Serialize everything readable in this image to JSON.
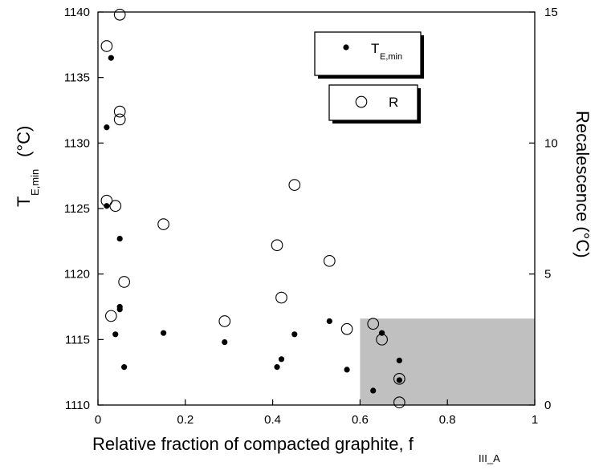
{
  "chart_data": {
    "type": "scatter",
    "x_axis": {
      "label_main": "Relative fraction of compacted graphite, f",
      "label_sub": "III_A",
      "range": [
        0,
        1
      ],
      "ticks": [
        0,
        0.2,
        0.4,
        0.6,
        0.8,
        1
      ],
      "tick_labels": [
        "0",
        "0.2",
        "0.4",
        "0.6",
        "0.8",
        "1"
      ]
    },
    "y_left": {
      "label_main": "T",
      "label_sub": "E,min",
      "label_unit": "(°C)",
      "range": [
        1110,
        1140
      ],
      "ticks": [
        1110,
        1115,
        1120,
        1125,
        1130,
        1135,
        1140
      ],
      "tick_labels": [
        "1110",
        "1115",
        "1120",
        "1125",
        "1130",
        "1135",
        "1140"
      ]
    },
    "y_right": {
      "label": "Recalescence (°C)",
      "range": [
        0,
        15
      ],
      "ticks": [
        0,
        5,
        10,
        15
      ],
      "tick_labels": [
        "0",
        "5",
        "10",
        "15"
      ]
    },
    "shaded_region": {
      "x": [
        0.6,
        1.0
      ],
      "y_left": [
        1110,
        1116.6
      ]
    },
    "series": [
      {
        "name_main": "T",
        "name_sub": "E,min",
        "marker": "filled-circle",
        "axis": "left",
        "points": [
          [
            0.03,
            1136.5
          ],
          [
            0.02,
            1131.2
          ],
          [
            0.02,
            1125.2
          ],
          [
            0.05,
            1122.7
          ],
          [
            0.05,
            1117.5
          ],
          [
            0.05,
            1117.3
          ],
          [
            0.04,
            1115.4
          ],
          [
            0.06,
            1112.9
          ],
          [
            0.15,
            1115.5
          ],
          [
            0.29,
            1114.8
          ],
          [
            0.41,
            1112.9
          ],
          [
            0.42,
            1113.5
          ],
          [
            0.45,
            1115.4
          ],
          [
            0.53,
            1116.4
          ],
          [
            0.57,
            1112.7
          ],
          [
            0.63,
            1111.1
          ],
          [
            0.65,
            1115.5
          ],
          [
            0.69,
            1113.4
          ],
          [
            0.69,
            1111.9
          ]
        ]
      },
      {
        "name_main": "R",
        "marker": "open-circle",
        "axis": "right",
        "points": [
          [
            0.05,
            14.9
          ],
          [
            0.02,
            13.7
          ],
          [
            0.05,
            11.2
          ],
          [
            0.05,
            10.9
          ],
          [
            0.02,
            7.8
          ],
          [
            0.04,
            7.6
          ],
          [
            0.15,
            6.9
          ],
          [
            0.45,
            8.4
          ],
          [
            0.41,
            6.1
          ],
          [
            0.53,
            5.5
          ],
          [
            0.06,
            4.7
          ],
          [
            0.42,
            4.1
          ],
          [
            0.03,
            3.4
          ],
          [
            0.29,
            3.2
          ],
          [
            0.57,
            2.9
          ],
          [
            0.63,
            3.1
          ],
          [
            0.65,
            2.5
          ],
          [
            0.69,
            1.0
          ],
          [
            0.69,
            0.1
          ]
        ]
      }
    ]
  }
}
